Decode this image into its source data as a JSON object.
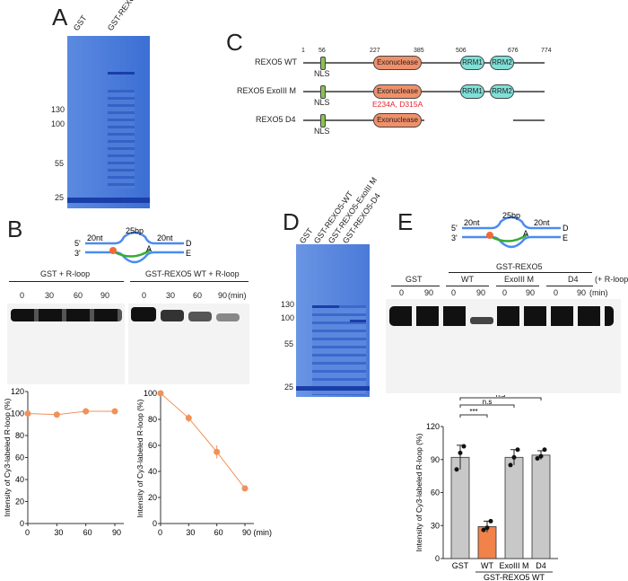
{
  "panels": {
    "a": "A",
    "b": "B",
    "c": "C",
    "d": "D",
    "e": "E"
  },
  "panel_a": {
    "lanes": [
      "GST",
      "GST-REXO5-WT"
    ],
    "markers": [
      "130",
      "100",
      "55",
      "25"
    ]
  },
  "panel_c": {
    "positions": [
      "1",
      "56",
      "227",
      "385",
      "506",
      "676",
      "774"
    ],
    "rows": [
      {
        "name": "REXO5 WT",
        "domains": [
          "Exonuclease",
          "RRM1",
          "RRM2"
        ],
        "nls": "NLS"
      },
      {
        "name": "REXO5 ExoIII M",
        "domains": [
          "Exonuclease",
          "RRM1",
          "RRM2"
        ],
        "nls": "NLS",
        "mutation": "E234A, D315A"
      },
      {
        "name": "REXO5 D4",
        "domains": [
          "Exonuclease"
        ],
        "nls": "NLS"
      }
    ],
    "colors": {
      "nls": "#8cc152",
      "exonuclease": "#f0906a",
      "rrm": "#7fe0d8",
      "mutation": "#e8232b"
    }
  },
  "substrate": {
    "top_len": "25bp",
    "left": "20nt",
    "right": "20nt",
    "five": "5'",
    "three": "3'",
    "d": "D",
    "e": "E",
    "a": "A"
  },
  "panel_b": {
    "groups": [
      "GST + R-loop",
      "GST-REXO5 WT + R-loop"
    ],
    "times": [
      "0",
      "30",
      "60",
      "90"
    ],
    "time_unit": "(min)"
  },
  "panel_d": {
    "lanes": [
      "GST",
      "GST-REXO5-WT",
      "GST-REXO5-ExoIII M",
      "GST-REXO5-D4"
    ],
    "markers": [
      "130",
      "100",
      "55",
      "25"
    ]
  },
  "panel_e": {
    "header": "GST-REXO5",
    "suffix": "(+ R-loop)",
    "groups": [
      "GST",
      "WT",
      "ExoIII M",
      "D4"
    ],
    "times": [
      "0",
      "90",
      "0",
      "90",
      "0",
      "90",
      "0",
      "90"
    ],
    "time_unit": "(min)"
  },
  "chart_data": [
    {
      "type": "line",
      "x": [
        0,
        30,
        60,
        90
      ],
      "y": [
        100,
        99,
        102,
        102
      ],
      "err": [
        0,
        0,
        3,
        0
      ],
      "ylabel": "Intensity of Cy3-labeled R-loop (%)",
      "ylim": [
        0,
        120
      ],
      "yticks": [
        0,
        20,
        40,
        60,
        80,
        100,
        120
      ],
      "xticks": [
        "0",
        "30",
        "60",
        "90"
      ],
      "color": "#f0915a"
    },
    {
      "type": "line",
      "x": [
        0,
        30,
        60,
        90
      ],
      "y": [
        100,
        81,
        55,
        27
      ],
      "err": [
        0,
        3,
        5,
        0
      ],
      "ylabel": "Intensity of Cy3-labeled R-loop (%)",
      "ylim": [
        0,
        100
      ],
      "yticks": [
        0,
        20,
        40,
        60,
        80,
        100
      ],
      "xticks": [
        "0",
        "30",
        "60",
        "90 (min)"
      ],
      "color": "#f0915a"
    },
    {
      "type": "bar",
      "categories": [
        "GST",
        "WT",
        "ExoIII M",
        "D4"
      ],
      "values": [
        92,
        29,
        92,
        94
      ],
      "err": [
        11,
        5,
        7,
        4
      ],
      "points": [
        [
          81,
          96,
          102
        ],
        [
          26,
          28,
          34
        ],
        [
          85,
          92,
          99
        ],
        [
          91,
          93,
          99
        ]
      ],
      "colors": [
        "#c8c8c8",
        "#f0824a",
        "#c8c8c8",
        "#c8c8c8"
      ],
      "ylabel": "Intensity of Cy3-labeled R-loop (%)",
      "ylim": [
        0,
        120
      ],
      "yticks": [
        0,
        30,
        60,
        90,
        120
      ],
      "group_label": "GST-REXO5 WT",
      "significance": [
        "***",
        "n.s",
        "n.s"
      ]
    }
  ]
}
